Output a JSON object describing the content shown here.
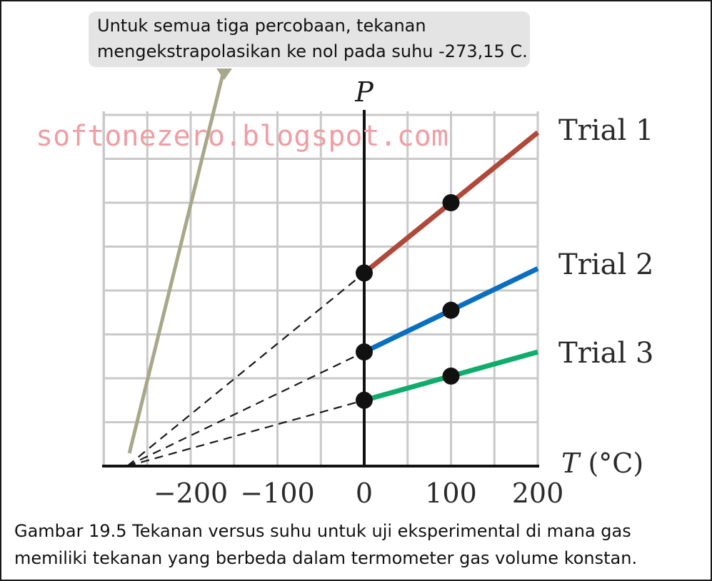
{
  "chart_data": {
    "type": "line",
    "xlabel": "T (°C)",
    "ylabel": "P",
    "xlim": [
      -280,
      200
    ],
    "x_ticks": [
      -200,
      -100,
      0,
      100,
      200
    ],
    "x_tick_labels": [
      "−200",
      "−100",
      "0",
      "100",
      "200"
    ],
    "grid": true,
    "extrapolation_intercept": -273.15,
    "series": [
      {
        "name": "Trial 1",
        "color": "#b0493a",
        "x": [
          0,
          100,
          200
        ],
        "y": [
          4.4,
          6.0,
          7.6
        ],
        "markers_at": [
          0,
          100
        ]
      },
      {
        "name": "Trial 2",
        "color": "#0a6fbf",
        "x": [
          0,
          100,
          200
        ],
        "y": [
          2.6,
          3.55,
          4.5
        ],
        "markers_at": [
          0,
          100
        ]
      },
      {
        "name": "Trial 3",
        "color": "#0fac6c",
        "x": [
          0,
          100,
          200
        ],
        "y": [
          1.5,
          2.05,
          2.6
        ],
        "markers_at": [
          0,
          100
        ]
      }
    ]
  },
  "callout": {
    "line1": "Untuk semua tiga percobaan, tekanan",
    "line2": "mengekstrapolasikan ke nol pada suhu -273,15 C.",
    "color": "#e4e4e4",
    "arrow_color": "#a7a88a"
  },
  "watermark": "softonezero.blogspot.com",
  "caption": {
    "line1": "Gambar 19.5 Tekanan versus suhu untuk uji eksperimental di mana gas",
    "line2": "memiliki tekanan yang berbeda dalam termometer gas volume konstan."
  }
}
